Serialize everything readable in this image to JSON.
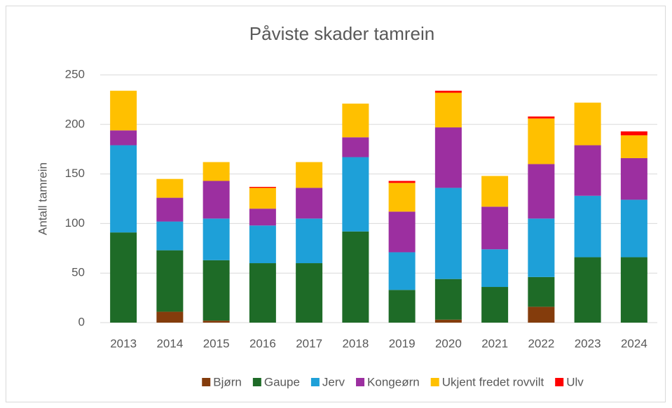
{
  "chart_data": {
    "type": "stacked_bar",
    "title": "Påviste skader tamrein",
    "y_label": "Antall tamrein",
    "categories": [
      "2013",
      "2014",
      "2015",
      "2016",
      "2017",
      "2018",
      "2019",
      "2020",
      "2021",
      "2022",
      "2023",
      "2024"
    ],
    "series": [
      {
        "name": "Bjørn",
        "color": "#843c0c",
        "values": [
          0,
          11,
          2,
          0,
          0,
          0,
          0,
          3,
          0,
          16,
          0,
          0
        ]
      },
      {
        "name": "Gaupe",
        "color": "#1e6b27",
        "values": [
          91,
          62,
          61,
          60,
          60,
          92,
          33,
          41,
          36,
          30,
          66,
          66
        ]
      },
      {
        "name": "Jerv",
        "color": "#1ea0d8",
        "values": [
          88,
          29,
          42,
          38,
          45,
          75,
          38,
          92,
          38,
          59,
          62,
          58
        ]
      },
      {
        "name": "Kongeørn",
        "color": "#9c2fa0",
        "values": [
          15,
          24,
          38,
          17,
          31,
          20,
          41,
          61,
          43,
          55,
          51,
          42
        ]
      },
      {
        "name": "Ukjent fredet rovvilt",
        "color": "#ffc000",
        "values": [
          40,
          19,
          19,
          21,
          26,
          34,
          29,
          35,
          31,
          46,
          43,
          23
        ]
      },
      {
        "name": "Ulv",
        "color": "#ff0000",
        "values": [
          0,
          0,
          0,
          1,
          0,
          0,
          2,
          2,
          0,
          2,
          0,
          4
        ]
      }
    ],
    "ylim": [
      0,
      250
    ],
    "yticks": [
      0,
      50,
      100,
      150,
      200,
      250
    ],
    "grid": true,
    "legend": "bottom"
  }
}
